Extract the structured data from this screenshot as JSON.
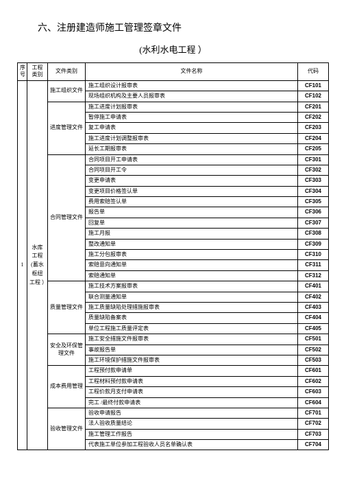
{
  "title": "六、注册建造师施工管理签章文件",
  "subtitle": "(水利水电工程 ）",
  "headers": {
    "seq": "序号",
    "proj": "工程类别",
    "cat": "文件类别",
    "name": "文件名称",
    "code": "代码"
  },
  "seq_value": "1",
  "proj_value": "水库\n工程\n(蓄水\n枢纽\n工程 ）",
  "groups": [
    {
      "cat": "施工组织文件",
      "rows": [
        {
          "name": "施工组织设计报审表",
          "code": "CF101"
        },
        {
          "name": "现场组织机构及主要人员报审表",
          "code": "CF102"
        }
      ]
    },
    {
      "cat": "进度管理文件",
      "rows": [
        {
          "name": "施工进度计划报审表",
          "code": "CF201"
        },
        {
          "name": "暂停施工申请表",
          "code": "CF202"
        },
        {
          "name": "复工申请表",
          "code": "CF203"
        },
        {
          "name": "施工进度计划调整报审表",
          "code": "CF204"
        },
        {
          "name": "延长工期报审表",
          "code": "CF205"
        }
      ]
    },
    {
      "cat": "合同管理文件",
      "rows": [
        {
          "name": "合同项目开工申请表",
          "code": "CF301"
        },
        {
          "name": "合同项目开工令",
          "code": "CF302"
        },
        {
          "name": "变更申请表",
          "code": "CF303"
        },
        {
          "name": "变更项目价格签认单",
          "code": "CF304"
        },
        {
          "name": "费用索赔签认单",
          "code": "CF305"
        },
        {
          "name": "报告单",
          "code": "CF306"
        },
        {
          "name": "回复单",
          "code": "CF307"
        },
        {
          "name": "施工月报",
          "code": "CF308"
        },
        {
          "name": "整改通知单",
          "code": "CF309"
        },
        {
          "name": "施工分包报审表",
          "code": "CF310"
        },
        {
          "name": "索赔意向通知单",
          "code": "CF311"
        },
        {
          "name": "索赔通知单",
          "code": "CF312"
        }
      ]
    },
    {
      "cat": "质量管理文件",
      "rows": [
        {
          "name": "施工技术方案报审表",
          "code": "CF401"
        },
        {
          "name": "联合测量通知单",
          "code": "CF402"
        },
        {
          "name": "施工质量缺陷处理措施报审表",
          "code": "CF403"
        },
        {
          "name": "质量缺陷备案表",
          "code": "CF404"
        },
        {
          "name": "单位工程施工质量评定表",
          "code": "CF405"
        }
      ]
    },
    {
      "cat": "安全及环保管理文件",
      "rows": [
        {
          "name": "施工安全措施文件报审表",
          "code": "CF501"
        },
        {
          "name": "事故报告单",
          "code": "CF502"
        },
        {
          "name": "施工环境保护措施文件报审表",
          "code": "CF503"
        }
      ]
    },
    {
      "cat": "成本费用管理",
      "rows": [
        {
          "name": "工程预付款申请单",
          "code": "CF601"
        },
        {
          "name": "工程材料预付款申请表",
          "code": "CF602"
        },
        {
          "name": "工程价款月支付申请表",
          "code": "CF603"
        },
        {
          "name": "完工 /最终付款申请表",
          "code": "CF604"
        }
      ]
    },
    {
      "cat": "验收管理文件",
      "rows": [
        {
          "name": "验收申请报告",
          "code": "CF701"
        },
        {
          "name": "法人验收质量结论",
          "code": "CF702"
        },
        {
          "name": "施工管理工作报告",
          "code": "CF703"
        },
        {
          "name": "代表施工单位参加工程验收人员名单确认表",
          "code": "CF704"
        }
      ]
    }
  ]
}
